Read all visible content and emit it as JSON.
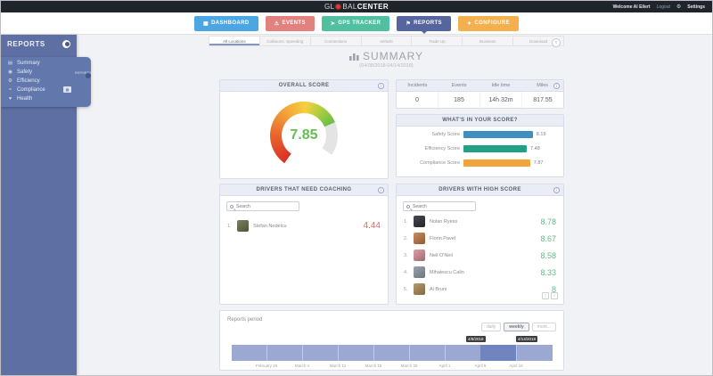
{
  "topbar": {
    "logo_prefix": "GL",
    "logo_mid": "BAL",
    "logo_suffix": "CENTER",
    "welcome": "Welcome Al Eilert",
    "logout": "Logout",
    "settings": "Settings"
  },
  "nav": {
    "active": "REPORTS",
    "items": [
      {
        "label": "DASHBOARD",
        "color": "#4ba6e3",
        "icon": "dashboard-icon"
      },
      {
        "label": "EVENTS",
        "color": "#e2817d",
        "icon": "warning-icon"
      },
      {
        "label": "GPS TRACKER",
        "color": "#50c0a0",
        "icon": "location-icon"
      },
      {
        "label": "REPORTS",
        "color": "#56659f",
        "icon": "flag-icon"
      },
      {
        "label": "CONFIGURE",
        "color": "#f4b04f",
        "icon": "wrench-icon"
      }
    ]
  },
  "sidebar": {
    "title": "REPORTS",
    "tab_label": "REPORTS",
    "items": [
      {
        "label": "Summary"
      },
      {
        "label": "Safety"
      },
      {
        "label": "Efficiency"
      },
      {
        "label": "Compliance"
      },
      {
        "label": "Health"
      }
    ]
  },
  "tabs": {
    "active_index": 0,
    "items": [
      "All Locations",
      "Collisions, Speeding",
      "Connections",
      "Vehicle",
      "Trade Up",
      "Business",
      "Download"
    ]
  },
  "page": {
    "title": "SUMMARY",
    "subtitle": "(04/08/2018-04/14/2018)"
  },
  "overall_score": {
    "title": "OVERALL SCORE",
    "value": "7.85",
    "color": "#63bd50"
  },
  "stats": {
    "columns": [
      "Incidents",
      "Events",
      "Idle time",
      "Miles"
    ],
    "values": [
      "0",
      "185",
      "14h 32m",
      "817.55"
    ]
  },
  "score_breakdown": {
    "title": "WHAT'S IN YOUR SCORE?",
    "chart_data": {
      "type": "bar",
      "orientation": "horizontal",
      "categories": [
        "Safety Score",
        "Efficiency Score",
        "Compliance Score"
      ],
      "values": [
        8.19,
        7.48,
        7.87
      ],
      "values_display": [
        "8.19",
        "7.48",
        "7.87"
      ],
      "colors": [
        "#3e8fc0",
        "#21a183",
        "#f2a33c"
      ],
      "xlim": [
        0,
        10
      ]
    }
  },
  "coaching": {
    "title": "DRIVERS THAT NEED COACHING",
    "search_placeholder": "Search",
    "score_color": "#dd6a5d",
    "drivers": [
      {
        "rank": "1.",
        "name": "Stefan Nedelcu",
        "score": "4.44"
      }
    ]
  },
  "high_score": {
    "title": "DRIVERS WITH HIGH SCORE",
    "search_placeholder": "Search",
    "score_color": "#67ba8e",
    "drivers": [
      {
        "rank": "1.",
        "name": "Nolan Ryess",
        "score": "8.78"
      },
      {
        "rank": "2.",
        "name": "Florin Pavel",
        "score": "8.67"
      },
      {
        "rank": "3.",
        "name": "Neil O'Neil",
        "score": "8.58"
      },
      {
        "rank": "4.",
        "name": "Mihaiescu Calin",
        "score": "8.33"
      },
      {
        "rank": "5.",
        "name": "Al Bruni",
        "score": "8"
      }
    ],
    "pagination": [
      "‹",
      "›"
    ]
  },
  "reports_period": {
    "label": "Reports period",
    "buttons": [
      "daily",
      "weekly",
      "mont..."
    ],
    "active_button_index": 1,
    "range_start_label": "4/8/2018",
    "range_end_label": "4/14/2018",
    "ticks": [
      "February 25",
      "March 4",
      "March 11",
      "March 18",
      "March 25",
      "April 1",
      "April 8",
      "April 15"
    ]
  }
}
